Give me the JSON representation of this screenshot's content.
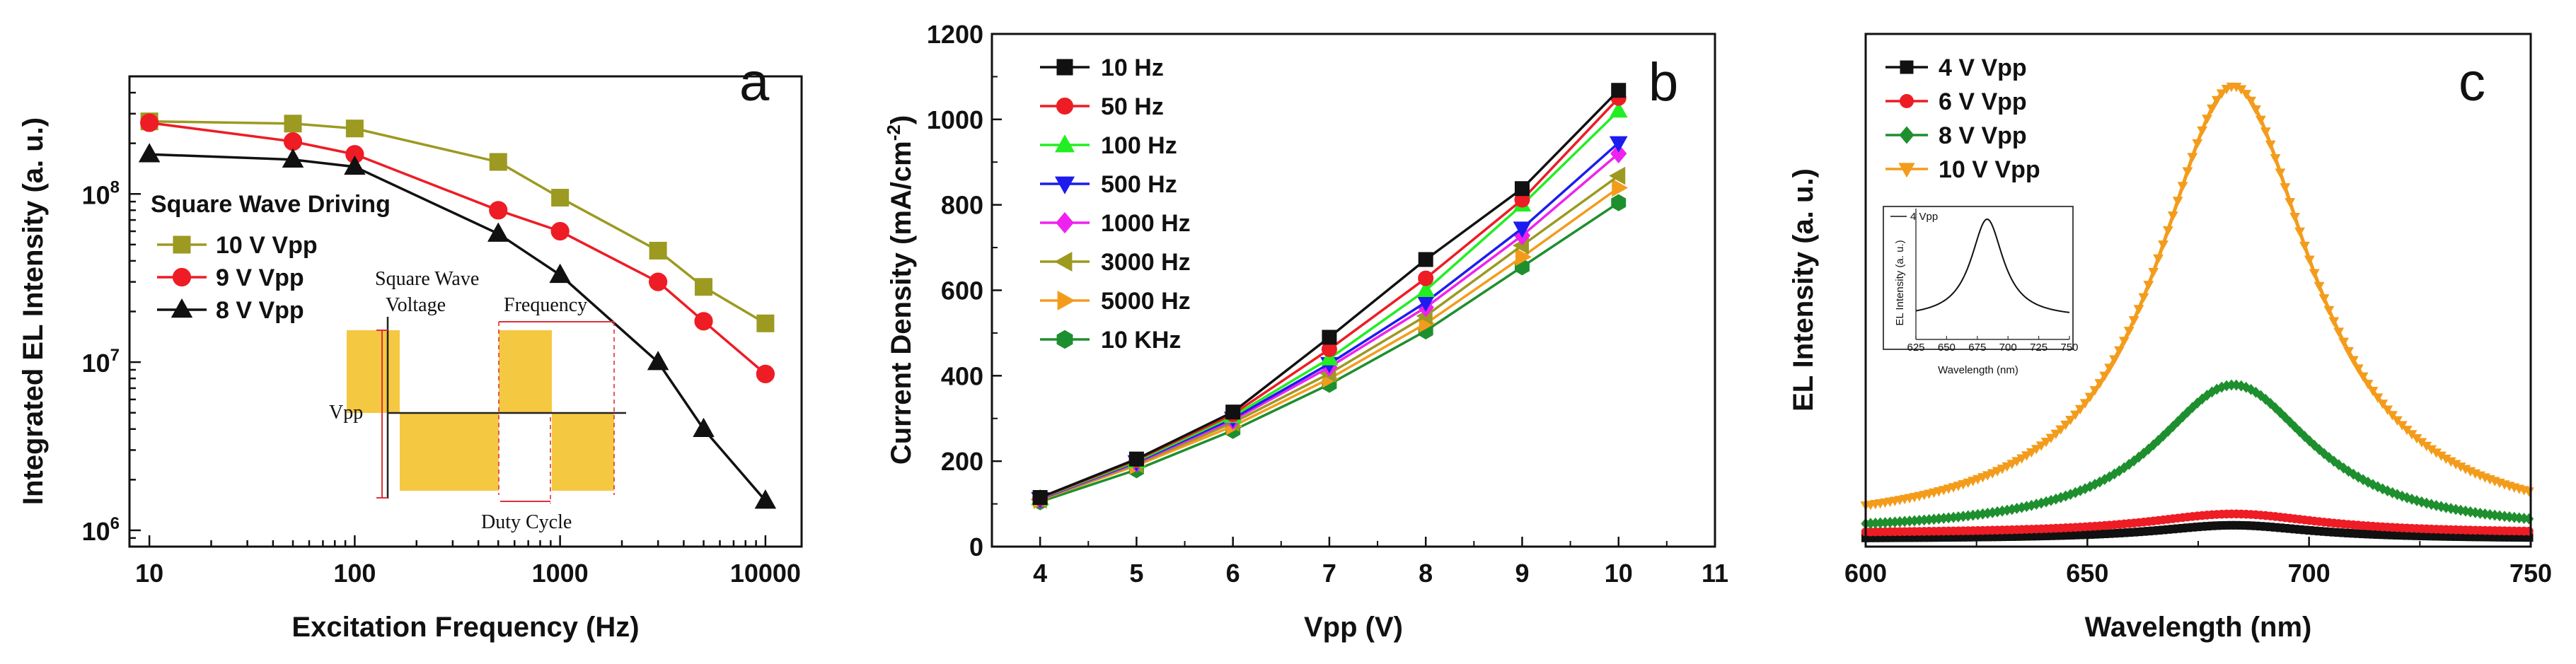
{
  "chart_data": [
    {
      "type": "line",
      "panel_label": "a",
      "xlabel": "Excitation Frequency (Hz)",
      "ylabel": "Integrated EL Intensity (a. u.)",
      "xscale": "log",
      "yscale": "log",
      "xlim": [
        8,
        15000
      ],
      "ylim": [
        800000,
        500000000
      ],
      "xticks": [
        {
          "value": 10,
          "label": "10"
        },
        {
          "value": 100,
          "label": "100"
        },
        {
          "value": 1000,
          "label": "1000"
        },
        {
          "value": 10000,
          "label": "10000"
        }
      ],
      "yticks": [
        {
          "value": 1000000,
          "base": "10",
          "exp": "6"
        },
        {
          "value": 10000000,
          "base": "10",
          "exp": "7"
        },
        {
          "value": 100000000,
          "base": "10",
          "exp": "8"
        }
      ],
      "legend_title": "Square Wave Driving",
      "x": [
        10,
        50,
        100,
        500,
        1000,
        3000,
        5000,
        10000
      ],
      "series": [
        {
          "name": "10 V Vpp",
          "color": "#9c9a21",
          "marker": "square",
          "values": [
            270000000,
            262000000,
            245000000,
            155000000,
            95000000,
            46000000,
            28000000,
            17000000
          ]
        },
        {
          "name": "9 V Vpp",
          "color": "#ee1c24",
          "marker": "circle",
          "values": [
            265000000,
            205000000,
            172000000,
            80000000,
            60000000,
            30000000,
            17500000,
            8500000
          ]
        },
        {
          "name": "8 V Vpp",
          "color": "#111111",
          "marker": "triangle",
          "values": [
            172000000,
            160000000,
            145000000,
            58000000,
            33000000,
            10000000,
            4000000,
            1500000
          ]
        }
      ],
      "inset": {
        "title_line1": "Square Wave",
        "title_line2": "Voltage",
        "frequency_label": "Frequency",
        "vpp_label": "Vpp",
        "duty_label": "Duty Cycle",
        "fill_color": "#f5c842"
      }
    },
    {
      "type": "line",
      "panel_label": "b",
      "xlabel": "Vpp (V)",
      "ylabel_main": "Current Density (mA/cm",
      "ylabel_sup": "-2",
      "ylabel_end": ")",
      "xlim": [
        3.5,
        11
      ],
      "ylim": [
        0,
        1200
      ],
      "xticks": [
        4,
        5,
        6,
        7,
        8,
        9,
        10,
        11
      ],
      "yticks": [
        0,
        200,
        400,
        600,
        800,
        1000,
        1200
      ],
      "x": [
        4,
        5,
        6,
        7,
        8,
        9,
        10
      ],
      "series": [
        {
          "name": "10 Hz",
          "color": "#111111",
          "marker": "square",
          "values": [
            115,
            205,
            315,
            490,
            672,
            838,
            1068
          ]
        },
        {
          "name": "50 Hz",
          "color": "#ee1c24",
          "marker": "circle",
          "values": [
            114,
            203,
            310,
            462,
            628,
            812,
            1050
          ]
        },
        {
          "name": "100 Hz",
          "color": "#22ee22",
          "marker": "triangle",
          "values": [
            113,
            200,
            305,
            440,
            600,
            800,
            1020
          ]
        },
        {
          "name": "500 Hz",
          "color": "#1c1cee",
          "marker": "triangle-down",
          "values": [
            112,
            198,
            300,
            428,
            572,
            745,
            945
          ]
        },
        {
          "name": "1000 Hz",
          "color": "#ee22ee",
          "marker": "diamond",
          "values": [
            111,
            196,
            296,
            420,
            560,
            728,
            920
          ]
        },
        {
          "name": "3000 Hz",
          "color": "#9c9a21",
          "marker": "triangle-left",
          "values": [
            110,
            193,
            290,
            405,
            540,
            705,
            868
          ]
        },
        {
          "name": "5000 Hz",
          "color": "#f39c1c",
          "marker": "triangle-right",
          "values": [
            109,
            190,
            282,
            393,
            522,
            678,
            840
          ]
        },
        {
          "name": "10 KHz",
          "color": "#1e8f2e",
          "marker": "hexagon",
          "values": [
            105,
            180,
            272,
            380,
            505,
            655,
            805
          ]
        }
      ]
    },
    {
      "type": "line",
      "panel_label": "c",
      "xlabel": "Wavelength (nm)",
      "ylabel": "EL Intensity (a. u.)",
      "xlim": [
        600,
        750
      ],
      "ylim": [
        0,
        1
      ],
      "xticks": [
        600,
        650,
        700,
        750
      ],
      "peak_nm": 683,
      "series": [
        {
          "name": "4 V Vpp",
          "color": "#111111",
          "marker": "square",
          "peak": 0.03,
          "baseline": 0.0,
          "width_nm": 22
        },
        {
          "name": "6 V Vpp",
          "color": "#ee1c24",
          "marker": "circle",
          "peak": 0.055,
          "baseline": 0.012,
          "width_nm": 24
        },
        {
          "name": "8 V Vpp",
          "color": "#1e8f2e",
          "marker": "diamond",
          "peak": 0.34,
          "baseline": 0.012,
          "width_nm": 22
        },
        {
          "name": "10 V Vpp",
          "color": "#f39c1c",
          "marker": "triangle-down",
          "peak": 1.0,
          "baseline": 0.012,
          "width_nm": 21.5
        }
      ],
      "inset": {
        "legend": "4 Vpp",
        "ylabel": "EL Intensity (a. u.)",
        "xlabel": "Wavelength (nm)",
        "xlim": [
          625,
          750
        ],
        "xticks": [
          625,
          650,
          675,
          700,
          725,
          750
        ],
        "peak_nm": 683,
        "width_nm": 16,
        "baseline": 0.18
      }
    }
  ]
}
